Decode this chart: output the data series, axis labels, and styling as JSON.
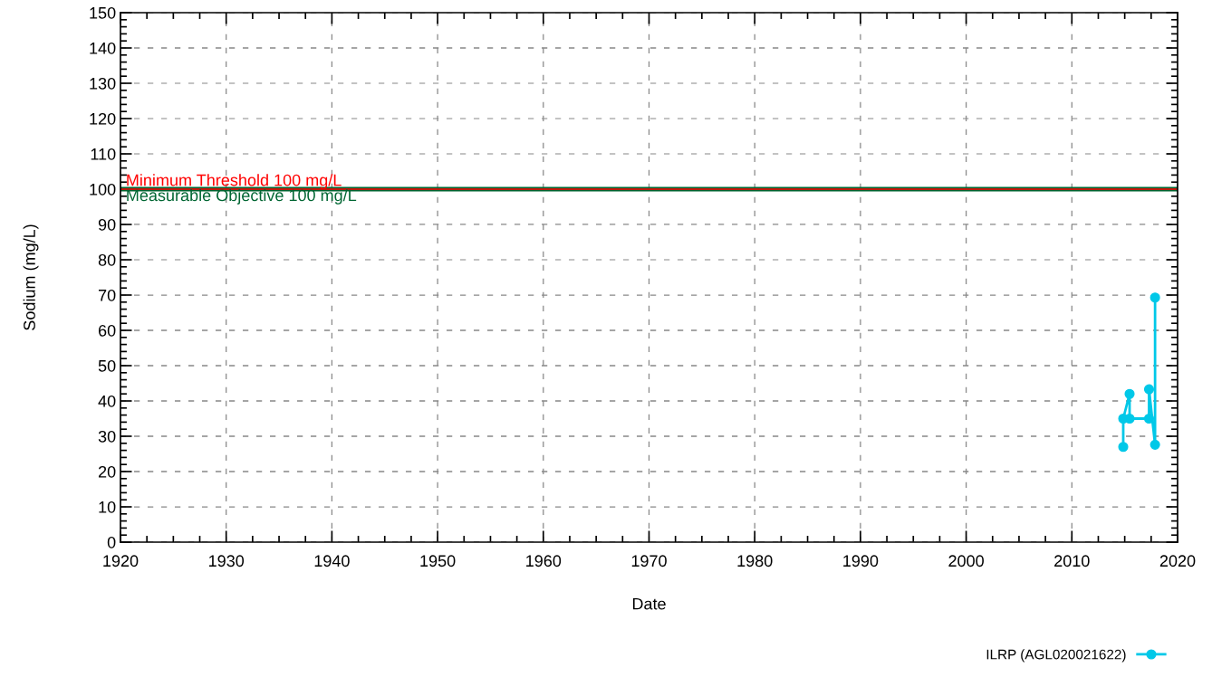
{
  "chart_data": {
    "type": "line",
    "xlabel": "Date",
    "ylabel": "Sodium (mg/L)",
    "xlim": [
      1920,
      2020
    ],
    "xticks": [
      1920,
      1930,
      1940,
      1950,
      1960,
      1970,
      1980,
      1990,
      2000,
      2010,
      2020
    ],
    "ylim": [
      0,
      150
    ],
    "yticks": [
      0,
      10,
      20,
      30,
      40,
      50,
      60,
      70,
      80,
      90,
      100,
      110,
      120,
      130,
      140,
      150
    ],
    "grid": true,
    "legend": "bottom right",
    "marker": "circle",
    "line_style": "solid",
    "series": [
      {
        "name": "ILRP (AGL020021622)",
        "color": "#00c8e8",
        "x": [
          2014.86,
          2014.86,
          2015.46,
          2015.46,
          2017.3,
          2017.3,
          2017.87,
          2017.87
        ],
        "values": [
          27,
          35,
          42,
          35,
          35,
          43.3,
          27.6,
          69.3
        ]
      }
    ],
    "ref_lines": [
      {
        "axis": "y",
        "value": 100,
        "label": "Minimum Threshold 100 mg/L",
        "color": "#ff0000",
        "line_style": "solid"
      },
      {
        "axis": "y",
        "value": 100,
        "label": "Measurable Objective 100 mg/L",
        "color": "#006633",
        "line_style": "solid"
      }
    ]
  }
}
